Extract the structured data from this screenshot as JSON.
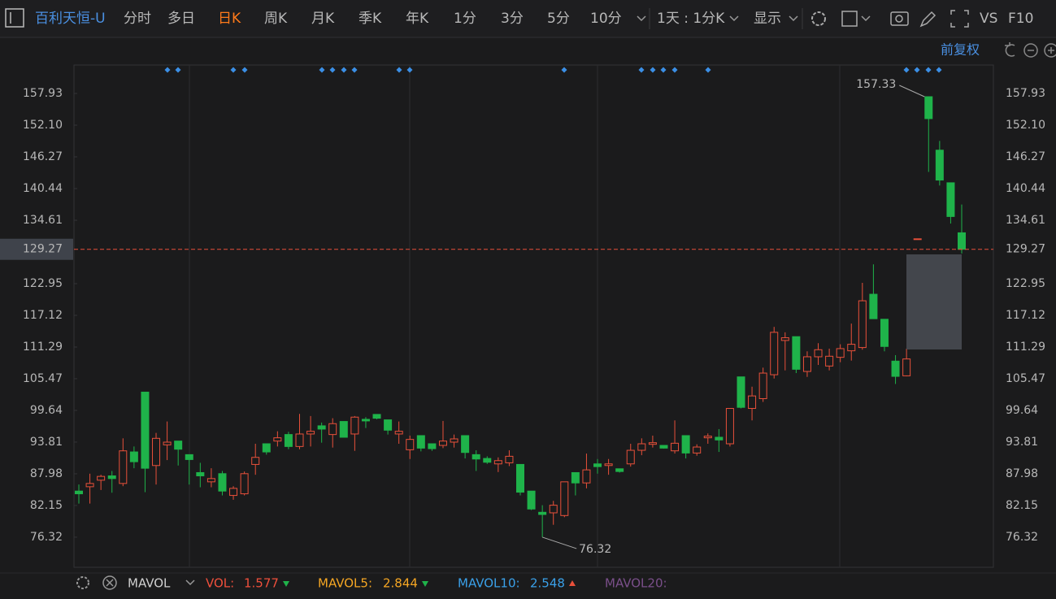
{
  "toolbar": {
    "symbol": "百利天恒-U",
    "tabs": [
      {
        "label": "分时",
        "active": false
      },
      {
        "label": "多日",
        "active": false
      },
      {
        "label": "日K",
        "active": true
      },
      {
        "label": "周K",
        "active": false
      },
      {
        "label": "月K",
        "active": false
      },
      {
        "label": "季K",
        "active": false
      },
      {
        "label": "年K",
        "active": false
      },
      {
        "label": "1分",
        "active": false
      },
      {
        "label": "3分",
        "active": false
      },
      {
        "label": "5分",
        "active": false
      },
      {
        "label": "10分",
        "active": false
      }
    ],
    "period": "1天 : 1分K",
    "display": "显示",
    "compare": "VS",
    "f10": "F10"
  },
  "adjust": "前复权",
  "chart_data": {
    "type": "candlestick",
    "open": [
      84.8,
      85.6,
      86.8,
      87.6,
      86.2,
      92,
      103,
      89.5,
      93.3,
      94,
      91.5,
      88.2,
      86.5,
      88,
      84,
      84.3,
      89.7,
      93.5,
      94,
      95.2,
      93,
      95.3,
      96.8,
      95.2,
      97.6,
      95.3,
      98,
      98.9,
      97.9,
      95.3,
      92.4,
      95,
      93.5,
      93.2,
      93.8,
      95,
      91.5,
      90.8,
      89.8,
      90,
      89.7,
      84.8,
      80.9,
      80.8,
      80.3,
      88.2,
      86.3,
      89.8,
      89.5,
      88.9,
      89.8,
      92.3,
      93.4,
      93.2,
      92.2,
      95,
      91.8,
      94.6,
      94.7,
      93.5,
      105.8,
      100,
      101.8,
      106.2,
      112.5,
      113.2,
      106.8,
      109.5,
      107.8,
      109.4,
      110.6,
      111.2,
      121,
      116.4,
      108.7,
      106,
      131.2,
      157.33,
      147.5,
      141.5,
      132.3
    ],
    "high": [
      86,
      88,
      87.8,
      88.5,
      94.5,
      93,
      103,
      95.5,
      97.6,
      94,
      91.5,
      90,
      89,
      88.5,
      85.7,
      88.4,
      93.5,
      93.5,
      95.8,
      95.7,
      99,
      98.6,
      97.4,
      98.2,
      97.6,
      98.6,
      98.4,
      98.9,
      97.9,
      97.6,
      95,
      95,
      93.5,
      97.7,
      95.2,
      95,
      92.3,
      91.2,
      91,
      92.3,
      89.7,
      84.8,
      82.2,
      83,
      86.5,
      88.2,
      91.7,
      90.7,
      90.7,
      88.9,
      93.5,
      94.5,
      95,
      93.2,
      97.8,
      95,
      93.4,
      95.4,
      96.2,
      100,
      105.8,
      104,
      107.5,
      115,
      114,
      113.2,
      110.5,
      112,
      111,
      111.8,
      115.6,
      123.1,
      126.5,
      116.4,
      109.8,
      111,
      131.2,
      157.33,
      149.2,
      141.5,
      137.5
    ],
    "low": [
      82.5,
      82.5,
      85,
      84.5,
      85.7,
      89,
      84.6,
      86,
      90.5,
      89.5,
      86,
      85.5,
      85.5,
      84,
      83.2,
      84,
      87.8,
      91.5,
      93,
      92.5,
      92.5,
      93,
      93.7,
      92.8,
      94.7,
      92.2,
      96.4,
      98,
      95.2,
      93.5,
      90.7,
      92.1,
      92.2,
      92.7,
      92.8,
      90.8,
      88.5,
      89.8,
      88.3,
      89.4,
      84,
      81.3,
      76.32,
      78.6,
      80,
      84,
      85.3,
      88,
      87.8,
      88.2,
      89.3,
      91.4,
      92.8,
      92.6,
      91.7,
      90.8,
      91.3,
      93.5,
      92,
      93,
      100,
      97.8,
      101.2,
      105.5,
      107,
      106.5,
      105.8,
      108,
      107,
      108.5,
      108.8,
      110.8,
      116.5,
      110.5,
      104.5,
      105.9,
      131.2,
      143.5,
      141,
      134,
      128.5
    ],
    "close": [
      84.3,
      86.2,
      87.5,
      87.1,
      92.2,
      90.2,
      89,
      94.5,
      93.8,
      92.5,
      90.6,
      87.6,
      87.1,
      84.8,
      85.3,
      88,
      91,
      92,
      94.6,
      93,
      95.3,
      95.8,
      96.2,
      97.2,
      94.7,
      98.4,
      97.7,
      98.2,
      96,
      95.8,
      94.3,
      92.7,
      92.6,
      94,
      94.4,
      91.9,
      90.7,
      90.1,
      90.4,
      91.2,
      84.6,
      81.5,
      80.5,
      82.2,
      86.5,
      86.3,
      88.7,
      89.3,
      89.8,
      88.4,
      92.3,
      93.5,
      93.7,
      92.7,
      93.6,
      91.8,
      92.9,
      94.9,
      94.2,
      100,
      100.2,
      102.3,
      106.5,
      114,
      113,
      107.2,
      109.5,
      110.8,
      109.6,
      111,
      111.8,
      119.8,
      116.5,
      111.4,
      105.9,
      109.1,
      131.2,
      153.3,
      142,
      135.3,
      129.27
    ],
    "up_color": "#e8503a",
    "down_color": "#1fb34a",
    "ylim": [
      70.78,
      163.16
    ],
    "yticks": [
      157.93,
      {
        "value": 152.1,
        "label": "152.10"
      },
      146.27,
      140.44,
      134.61,
      122.95,
      117.12,
      111.29,
      105.47,
      99.64,
      93.81,
      87.98,
      82.15,
      76.32
    ],
    "last_price": 129.27,
    "last_price_color": "#e8503a"
  },
  "indicator": {
    "name": "MAVOL",
    "items": [
      {
        "name": "VOL:",
        "value": 1.577,
        "color": "#f0503c",
        "trend": "down"
      },
      {
        "name": "MAVOL5:",
        "value": 2.844,
        "color": "#f5a623",
        "trend": "down"
      },
      {
        "name": "MAVOL10:",
        "value": 2.548,
        "color": "#3aa0e8",
        "trend": "up"
      },
      {
        "name": "MAVOL20:",
        "color": "#7a4f8a"
      }
    ]
  }
}
